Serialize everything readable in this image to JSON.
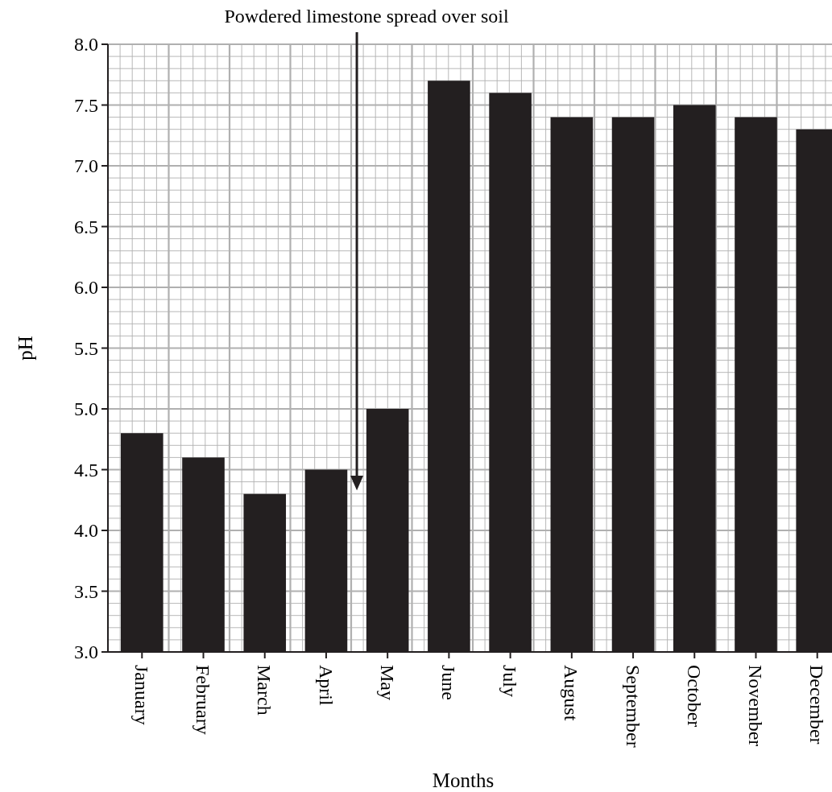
{
  "chart_data": {
    "type": "bar",
    "xlabel": "Months",
    "ylabel": "pH",
    "annotations": [
      "Powdered limestone spread over soil"
    ],
    "categories": [
      "January",
      "February",
      "March",
      "April",
      "May",
      "June",
      "July",
      "August",
      "September",
      "October",
      "November",
      "December"
    ],
    "values": [
      4.8,
      4.6,
      4.3,
      4.5,
      5.0,
      7.7,
      7.6,
      7.4,
      7.4,
      7.5,
      7.4,
      7.3
    ],
    "color": "#231f20",
    "ylim": [
      3.0,
      8.0
    ],
    "yticks": [
      {
        "value": 3,
        "label": "3.0"
      },
      {
        "value": 3.5,
        "label": "3.5"
      },
      {
        "value": 4,
        "label": "4.0"
      },
      {
        "value": 4.5,
        "label": "4.5"
      },
      {
        "value": 5,
        "label": "5.0"
      },
      {
        "value": 5.5,
        "label": "5.5"
      },
      {
        "value": 6,
        "label": "6.0"
      },
      {
        "value": 6.5,
        "label": "6.5"
      },
      {
        "value": 7,
        "label": "7.0"
      },
      {
        "value": 7.5,
        "label": "7.5"
      },
      {
        "value": 8,
        "label": "8.0"
      }
    ],
    "grid": true
  }
}
